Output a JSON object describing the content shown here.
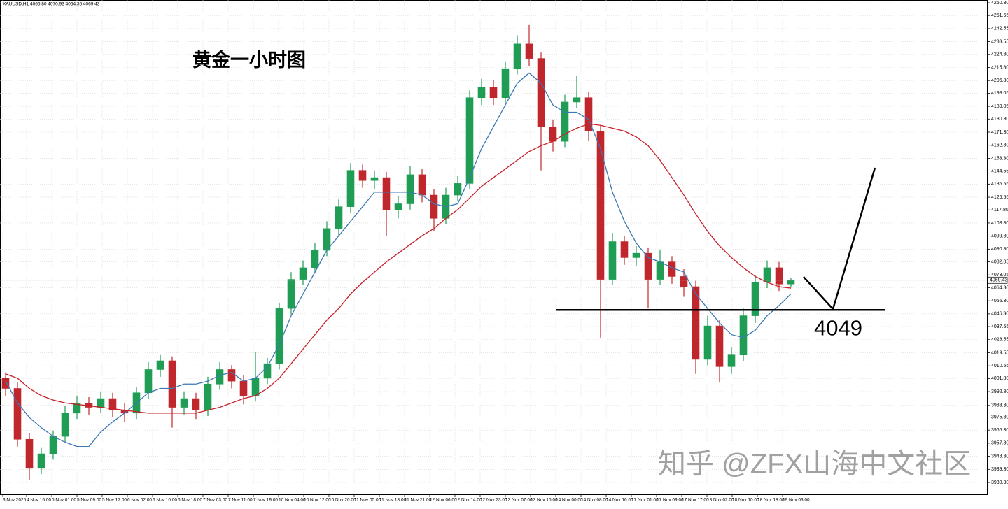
{
  "chart_data": {
    "type": "candlestick",
    "title": "黄金一小时图",
    "header": "XAUUSD,H1  4066.80 4070.93 4064.36 4069.43",
    "watermark": "知乎 @ZFX山海中文社区",
    "up_color": "#1f9d55",
    "down_color": "#c0272d",
    "open": [
      4002,
      3995,
      3960,
      3940,
      3950,
      3962,
      3978,
      3985,
      3982,
      3988,
      3980,
      3978,
      3992,
      4008,
      4014,
      3982,
      3988,
      3980,
      3998,
      4008,
      4000,
      3990,
      4002,
      4012,
      4050,
      4070,
      4078,
      4090,
      4105,
      4120,
      4145,
      4138,
      4140,
      4118,
      4122,
      4142,
      4128,
      4112,
      4128,
      4136,
      4195,
      4202,
      4195,
      4215,
      4232,
      4222,
      4175,
      4165,
      4192,
      4195,
      4172,
      4070,
      4096,
      4085,
      4088,
      4070,
      4082,
      4072,
      4065,
      4015,
      4038,
      4010,
      4018,
      4045,
      4068,
      4078,
      4066.8
    ],
    "high": [
      4006,
      3999,
      3964,
      3954,
      3966,
      3983,
      3990,
      3989,
      3993,
      3992,
      3985,
      3996,
      4013,
      4018,
      4017,
      3993,
      3992,
      4003,
      4013,
      4011,
      4004,
      4020,
      4016,
      4054,
      4075,
      4083,
      4095,
      4110,
      4125,
      4150,
      4149,
      4145,
      4144,
      4127,
      4148,
      4146,
      4132,
      4133,
      4141,
      4200,
      4208,
      4207,
      4220,
      4238,
      4245,
      4226,
      4180,
      4197,
      4210,
      4199,
      4176,
      4102,
      4100,
      4093,
      4092,
      4090,
      4086,
      4077,
      4069,
      4045,
      4042,
      4023,
      4050,
      4073,
      4083,
      4082,
      4070.93
    ],
    "low": [
      3990,
      3955,
      3932,
      3936,
      3946,
      3958,
      3974,
      3977,
      3978,
      3975,
      3972,
      3974,
      3988,
      4003,
      3968,
      3977,
      3974,
      3976,
      3994,
      3995,
      3984,
      3986,
      3998,
      4008,
      4046,
      4066,
      4074,
      4086,
      4100,
      4116,
      4133,
      4132,
      4100,
      4112,
      4118,
      4123,
      4103,
      4108,
      4124,
      4132,
      4190,
      4190,
      4191,
      4211,
      4217,
      4145,
      4158,
      4161,
      4188,
      4165,
      4030,
      4066,
      4080,
      4079,
      4050,
      4066,
      4067,
      4058,
      4005,
      4011,
      3999,
      4005,
      4014,
      4040,
      4064,
      4062,
      4064.36
    ],
    "close": [
      3995,
      3960,
      3940,
      3950,
      3962,
      3978,
      3985,
      3982,
      3988,
      3980,
      3978,
      3992,
      4008,
      4014,
      3982,
      3988,
      3980,
      3998,
      4008,
      4000,
      3990,
      4002,
      4012,
      4050,
      4070,
      4078,
      4090,
      4105,
      4120,
      4145,
      4138,
      4140,
      4118,
      4122,
      4142,
      4128,
      4112,
      4128,
      4136,
      4195,
      4202,
      4195,
      4215,
      4232,
      4222,
      4175,
      4165,
      4192,
      4195,
      4172,
      4070,
      4096,
      4085,
      4088,
      4070,
      4082,
      4072,
      4065,
      4015,
      4038,
      4010,
      4018,
      4045,
      4068,
      4078,
      4066.8,
      4069.43
    ],
    "series": [
      {
        "color": "#3c78b4",
        "values": [
          4000,
          3985,
          3975,
          3968,
          3962,
          3958,
          3955,
          3955,
          3965,
          3972,
          3978,
          3985,
          3992,
          3995,
          3995,
          3998,
          3998,
          4000,
          4004,
          4006,
          4000,
          4002,
          4010,
          4025,
          4045,
          4060,
          4075,
          4090,
          4100,
          4110,
          4120,
          4130,
          4130,
          4130,
          4130,
          4128,
          4122,
          4120,
          4122,
          4140,
          4160,
          4175,
          4190,
          4205,
          4212,
          4205,
          4190,
          4185,
          4185,
          4180,
          4160,
          4130,
          4110,
          4095,
          4085,
          4082,
          4078,
          4075,
          4060,
          4050,
          4040,
          4032,
          4030,
          4035,
          4045,
          4052,
          4060
        ]
      },
      {
        "color": "#c8202a",
        "values": [
          4005,
          4002,
          3995,
          3990,
          3987,
          3985,
          3984,
          3983,
          3982,
          3981,
          3980,
          3979,
          3978,
          3978,
          3978,
          3978,
          3978,
          3980,
          3982,
          3985,
          3988,
          3990,
          3995,
          4002,
          4012,
          4022,
          4032,
          4042,
          4050,
          4060,
          4068,
          4075,
          4082,
          4088,
          4094,
          4100,
          4105,
          4112,
          4118,
          4126,
          4134,
          4140,
          4146,
          4152,
          4158,
          4162,
          4165,
          4170,
          4174,
          4177,
          4176,
          4174,
          4172,
          4168,
          4162,
          4152,
          4140,
          4128,
          4115,
          4103,
          4093,
          4085,
          4078,
          4072,
          4068,
          4065,
          4064
        ]
      }
    ],
    "xtick_labels": [
      "3 Nov 2025",
      "4 Nov 16:00",
      "5 Nov 01:00",
      "5 Nov 09:00",
      "5 Nov 17:00",
      "6 Nov 02:00",
      "6 Nov 10:00",
      "6 Nov 18:00",
      "7 Nov 03:00",
      "7 Nov 11:00",
      "7 Nov 19:00",
      "10 Nov 04:00",
      "10 Nov 12:00",
      "10 Nov 20:00",
      "11 Nov 05:00",
      "11 Nov 13:00",
      "11 Nov 21:00",
      "12 Nov 06:00",
      "12 Nov 14:00",
      "12 Nov 23:00",
      "13 Nov 07:00",
      "13 Nov 15:00",
      "14 Nov 00:00",
      "14 Nov 08:00",
      "14 Nov 16:00",
      "17 Nov 01:00",
      "17 Nov 09:00",
      "17 Nov 17:00",
      "18 Nov 02:00",
      "18 Nov 10:00",
      "18 Nov 18:00",
      "19 Nov 03:00"
    ],
    "ylim": [
      3921.64,
      4262.22
    ],
    "yticks": [
      {
        "value": 3930.3,
        "label": "3930.30"
      },
      {
        "value": 3939.3,
        "label": "3939.30"
      },
      {
        "value": 3948.3,
        "label": "3948.30"
      },
      {
        "value": 3957.3,
        "label": "3957.30"
      },
      {
        "value": 3966.3,
        "label": "3966.30"
      },
      {
        "value": 3975.3,
        "label": "3975.30"
      },
      {
        "value": 3983.3,
        "label": "3983.30"
      },
      {
        "value": 3992.8,
        "label": "3992.80"
      },
      {
        "value": 4001.8,
        "label": "4001.80"
      },
      {
        "value": 4010.55,
        "label": "4010.55"
      },
      {
        "value": 4019.55,
        "label": "4019.55"
      },
      {
        "value": 4028.55,
        "label": "4028.55"
      },
      {
        "value": 4037.55,
        "label": "4037.55"
      },
      {
        "value": 4046.3,
        "label": "4046.30"
      },
      {
        "value": 4055.3,
        "label": "4055.30"
      },
      {
        "value": 4064.3,
        "label": "4064.30"
      },
      {
        "value": 4073.05,
        "label": "4073.05"
      },
      {
        "value": 4082.05,
        "label": "4082.05"
      },
      {
        "value": 4090.8,
        "label": "4090.80"
      },
      {
        "value": 4099.8,
        "label": "4099.80"
      },
      {
        "value": 4108.8,
        "label": "4108.80"
      },
      {
        "value": 4117.8,
        "label": "4117.80"
      },
      {
        "value": 4126.55,
        "label": "4126.55"
      },
      {
        "value": 4135.55,
        "label": "4135.55"
      },
      {
        "value": 4144.55,
        "label": "4144.55"
      },
      {
        "value": 4153.3,
        "label": "4153.30"
      },
      {
        "value": 4162.3,
        "label": "4162.30"
      },
      {
        "value": 4171.3,
        "label": "4171.30"
      },
      {
        "value": 4180.3,
        "label": "4180.30"
      },
      {
        "value": 4189.05,
        "label": "4189.05"
      },
      {
        "value": 4198.05,
        "label": "4198.05"
      },
      {
        "value": 4206.8,
        "label": "4206.80"
      },
      {
        "value": 4215.8,
        "label": "4215.80"
      },
      {
        "value": 4224.8,
        "label": "4224.80"
      },
      {
        "value": 4233.55,
        "label": "4233.55"
      },
      {
        "value": 4242.55,
        "label": "4242.55"
      },
      {
        "value": 4251.55,
        "label": "4251.55"
      },
      {
        "value": 4260.3,
        "label": "4260.30"
      }
    ],
    "grid": true,
    "last_price": {
      "value": 4069.43,
      "label": "4069.43"
    },
    "level": 4049
  }
}
